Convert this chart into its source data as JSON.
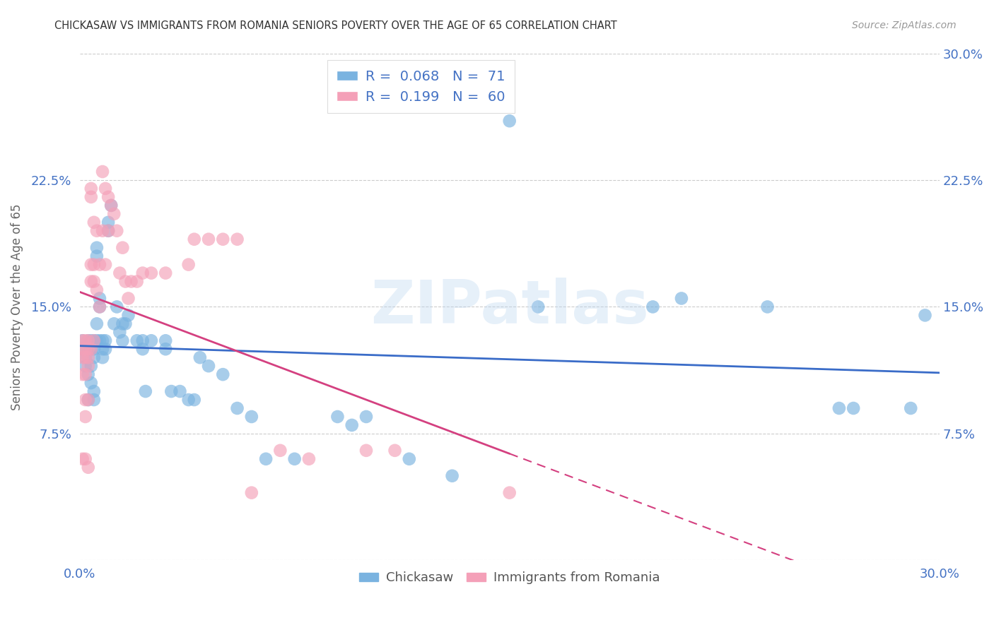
{
  "title": "CHICKASAW VS IMMIGRANTS FROM ROMANIA SENIORS POVERTY OVER THE AGE OF 65 CORRELATION CHART",
  "source": "Source: ZipAtlas.com",
  "ylabel": "Seniors Poverty Over the Age of 65",
  "xlim": [
    0.0,
    0.3
  ],
  "ylim": [
    0.0,
    0.3
  ],
  "yticks": [
    0.0,
    0.075,
    0.15,
    0.225,
    0.3
  ],
  "ytick_labels_left": [
    "",
    "7.5%",
    "15.0%",
    "22.5%",
    ""
  ],
  "ytick_labels_right": [
    "",
    "7.5%",
    "15.0%",
    "22.5%",
    "30.0%"
  ],
  "xticks": [
    0.0,
    0.075,
    0.15,
    0.225,
    0.3
  ],
  "xtick_labels": [
    "0.0%",
    "",
    "",
    "",
    "30.0%"
  ],
  "chickasaw_R": 0.068,
  "chickasaw_N": 71,
  "romania_R": 0.199,
  "romania_N": 60,
  "color_blue": "#7ab3e0",
  "color_pink": "#f4a0b8",
  "color_blue_line": "#3a6cc8",
  "color_pink_line": "#d44080",
  "color_axis_labels": "#4472c4",
  "color_grid": "#cccccc",
  "background_color": "#ffffff",
  "chickasaw_x": [
    0.001,
    0.001,
    0.002,
    0.002,
    0.003,
    0.003,
    0.003,
    0.003,
    0.004,
    0.004,
    0.004,
    0.004,
    0.005,
    0.005,
    0.005,
    0.005,
    0.005,
    0.006,
    0.006,
    0.006,
    0.006,
    0.007,
    0.007,
    0.007,
    0.008,
    0.008,
    0.008,
    0.009,
    0.009,
    0.01,
    0.01,
    0.011,
    0.012,
    0.013,
    0.014,
    0.015,
    0.015,
    0.016,
    0.017,
    0.02,
    0.022,
    0.022,
    0.023,
    0.025,
    0.03,
    0.03,
    0.032,
    0.035,
    0.038,
    0.04,
    0.042,
    0.045,
    0.05,
    0.055,
    0.06,
    0.065,
    0.075,
    0.09,
    0.095,
    0.1,
    0.115,
    0.13,
    0.15,
    0.16,
    0.2,
    0.21,
    0.24,
    0.265,
    0.27,
    0.29,
    0.295
  ],
  "chickasaw_y": [
    0.13,
    0.125,
    0.12,
    0.115,
    0.13,
    0.125,
    0.11,
    0.095,
    0.13,
    0.125,
    0.115,
    0.105,
    0.13,
    0.125,
    0.12,
    0.1,
    0.095,
    0.18,
    0.185,
    0.14,
    0.13,
    0.155,
    0.15,
    0.13,
    0.125,
    0.13,
    0.12,
    0.13,
    0.125,
    0.2,
    0.195,
    0.21,
    0.14,
    0.15,
    0.135,
    0.14,
    0.13,
    0.14,
    0.145,
    0.13,
    0.13,
    0.125,
    0.1,
    0.13,
    0.13,
    0.125,
    0.1,
    0.1,
    0.095,
    0.095,
    0.12,
    0.115,
    0.11,
    0.09,
    0.085,
    0.06,
    0.06,
    0.085,
    0.08,
    0.085,
    0.06,
    0.05,
    0.26,
    0.15,
    0.15,
    0.155,
    0.15,
    0.09,
    0.09,
    0.09,
    0.145
  ],
  "romania_x": [
    0.001,
    0.001,
    0.001,
    0.001,
    0.001,
    0.002,
    0.002,
    0.002,
    0.002,
    0.002,
    0.002,
    0.002,
    0.003,
    0.003,
    0.003,
    0.003,
    0.003,
    0.003,
    0.004,
    0.004,
    0.004,
    0.004,
    0.004,
    0.005,
    0.005,
    0.005,
    0.005,
    0.006,
    0.006,
    0.007,
    0.007,
    0.008,
    0.008,
    0.009,
    0.009,
    0.01,
    0.01,
    0.011,
    0.012,
    0.013,
    0.014,
    0.015,
    0.016,
    0.017,
    0.018,
    0.02,
    0.022,
    0.025,
    0.03,
    0.038,
    0.04,
    0.045,
    0.05,
    0.055,
    0.06,
    0.07,
    0.08,
    0.1,
    0.11,
    0.15
  ],
  "romania_y": [
    0.13,
    0.125,
    0.12,
    0.11,
    0.06,
    0.13,
    0.125,
    0.12,
    0.11,
    0.095,
    0.085,
    0.06,
    0.13,
    0.125,
    0.12,
    0.115,
    0.095,
    0.055,
    0.22,
    0.215,
    0.175,
    0.165,
    0.125,
    0.2,
    0.175,
    0.165,
    0.13,
    0.195,
    0.16,
    0.175,
    0.15,
    0.23,
    0.195,
    0.22,
    0.175,
    0.215,
    0.195,
    0.21,
    0.205,
    0.195,
    0.17,
    0.185,
    0.165,
    0.155,
    0.165,
    0.165,
    0.17,
    0.17,
    0.17,
    0.175,
    0.19,
    0.19,
    0.19,
    0.19,
    0.04,
    0.065,
    0.06,
    0.065,
    0.065,
    0.04
  ]
}
